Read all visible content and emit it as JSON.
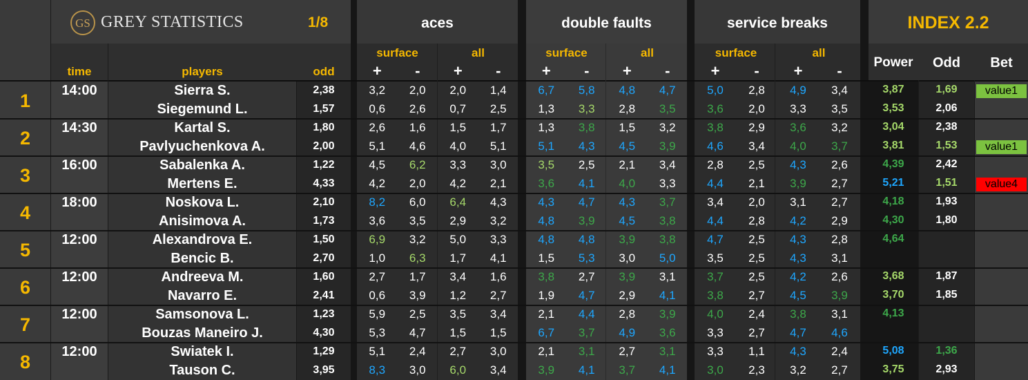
{
  "brand": {
    "logo_monogram": "GS",
    "name": "GREY STATISTICS",
    "page": "1/8"
  },
  "groups": {
    "aces": "aces",
    "double_faults": "double faults",
    "service_breaks": "service breaks",
    "index": "INDEX 2.2"
  },
  "sub": {
    "surface": "surface",
    "all": "all"
  },
  "signs": {
    "plus": "+",
    "minus": "-"
  },
  "columns": {
    "time": "time",
    "players": "players",
    "odd": "odd",
    "power": "Power",
    "odd2": "Odd",
    "bet": "Bet"
  },
  "colors": {
    "header_gold": "#f5b800",
    "blue": "#1ea7ff",
    "green": "#7ac143",
    "dark_green": "#3da84a",
    "light_green": "#a6d96a",
    "value1_bg": "#7cc240",
    "value4_bg": "#ff0000"
  },
  "matches": [
    {
      "num": "1",
      "time": "14:00",
      "players": [
        {
          "name": "Sierra S.",
          "odd": "2,38",
          "stats": [
            [
              "3,2",
              "w"
            ],
            [
              "2,0",
              "w"
            ],
            [
              "2,0",
              "w"
            ],
            [
              "1,4",
              "w"
            ],
            [
              "6,7",
              "b"
            ],
            [
              "5,8",
              "b"
            ],
            [
              "4,8",
              "b"
            ],
            [
              "4,7",
              "b"
            ],
            [
              "5,0",
              "b"
            ],
            [
              "2,8",
              "w"
            ],
            [
              "4,9",
              "b"
            ],
            [
              "3,4",
              "w"
            ]
          ],
          "power": [
            "3,87",
            "lg"
          ],
          "odd2": [
            "1,69",
            "lg"
          ],
          "bet": "value1",
          "bet_type": "v1"
        },
        {
          "name": "Siegemund L.",
          "odd": "1,57",
          "stats": [
            [
              "0,6",
              "w"
            ],
            [
              "2,6",
              "w"
            ],
            [
              "0,7",
              "w"
            ],
            [
              "2,5",
              "w"
            ],
            [
              "1,3",
              "w"
            ],
            [
              "3,3",
              "lg"
            ],
            [
              "2,8",
              "w"
            ],
            [
              "3,5",
              "dg"
            ],
            [
              "3,6",
              "dg"
            ],
            [
              "2,0",
              "w"
            ],
            [
              "3,3",
              "w"
            ],
            [
              "3,5",
              "w"
            ]
          ],
          "power": [
            "3,53",
            "lg"
          ],
          "odd2": [
            "2,06",
            "w"
          ],
          "bet": "",
          "bet_type": ""
        }
      ]
    },
    {
      "num": "2",
      "time": "14:30",
      "players": [
        {
          "name": "Kartal S.",
          "odd": "1,80",
          "stats": [
            [
              "2,6",
              "w"
            ],
            [
              "1,6",
              "w"
            ],
            [
              "1,5",
              "w"
            ],
            [
              "1,7",
              "w"
            ],
            [
              "1,3",
              "w"
            ],
            [
              "3,8",
              "dg"
            ],
            [
              "1,5",
              "w"
            ],
            [
              "3,2",
              "w"
            ],
            [
              "3,8",
              "dg"
            ],
            [
              "2,9",
              "w"
            ],
            [
              "3,6",
              "dg"
            ],
            [
              "3,2",
              "w"
            ]
          ],
          "power": [
            "3,04",
            "lg"
          ],
          "odd2": [
            "2,38",
            "w"
          ],
          "bet": "",
          "bet_type": ""
        },
        {
          "name": "Pavlyuchenkova A.",
          "odd": "2,00",
          "stats": [
            [
              "5,1",
              "w"
            ],
            [
              "4,6",
              "w"
            ],
            [
              "4,0",
              "w"
            ],
            [
              "5,1",
              "w"
            ],
            [
              "5,1",
              "b"
            ],
            [
              "4,3",
              "b"
            ],
            [
              "4,5",
              "b"
            ],
            [
              "3,9",
              "dg"
            ],
            [
              "4,6",
              "b"
            ],
            [
              "3,4",
              "w"
            ],
            [
              "4,0",
              "dg"
            ],
            [
              "3,7",
              "dg"
            ]
          ],
          "power": [
            "3,81",
            "lg"
          ],
          "odd2": [
            "1,53",
            "lg"
          ],
          "bet": "value1",
          "bet_type": "v1"
        }
      ]
    },
    {
      "num": "3",
      "time": "16:00",
      "players": [
        {
          "name": "Sabalenka A.",
          "odd": "1,22",
          "stats": [
            [
              "4,5",
              "w"
            ],
            [
              "6,2",
              "lg"
            ],
            [
              "3,3",
              "w"
            ],
            [
              "3,0",
              "w"
            ],
            [
              "3,5",
              "lg"
            ],
            [
              "2,5",
              "w"
            ],
            [
              "2,1",
              "w"
            ],
            [
              "3,4",
              "w"
            ],
            [
              "2,8",
              "w"
            ],
            [
              "2,5",
              "w"
            ],
            [
              "4,3",
              "b"
            ],
            [
              "2,6",
              "w"
            ]
          ],
          "power": [
            "4,39",
            "dg"
          ],
          "odd2": [
            "2,42",
            "w"
          ],
          "bet": "",
          "bet_type": ""
        },
        {
          "name": "Mertens E.",
          "odd": "4,33",
          "stats": [
            [
              "4,2",
              "w"
            ],
            [
              "2,0",
              "w"
            ],
            [
              "4,2",
              "w"
            ],
            [
              "2,1",
              "w"
            ],
            [
              "3,6",
              "dg"
            ],
            [
              "4,1",
              "b"
            ],
            [
              "4,0",
              "dg"
            ],
            [
              "3,3",
              "w"
            ],
            [
              "4,4",
              "b"
            ],
            [
              "2,1",
              "w"
            ],
            [
              "3,9",
              "dg"
            ],
            [
              "2,7",
              "w"
            ]
          ],
          "power": [
            "5,21",
            "b"
          ],
          "odd2": [
            "1,51",
            "lg"
          ],
          "bet": "value4",
          "bet_type": "v4"
        }
      ]
    },
    {
      "num": "4",
      "time": "18:00",
      "players": [
        {
          "name": "Noskova L.",
          "odd": "2,10",
          "stats": [
            [
              "8,2",
              "b"
            ],
            [
              "6,0",
              "w"
            ],
            [
              "6,4",
              "lg"
            ],
            [
              "4,3",
              "w"
            ],
            [
              "4,3",
              "b"
            ],
            [
              "4,7",
              "b"
            ],
            [
              "4,3",
              "b"
            ],
            [
              "3,7",
              "dg"
            ],
            [
              "3,4",
              "w"
            ],
            [
              "2,0",
              "w"
            ],
            [
              "3,1",
              "w"
            ],
            [
              "2,7",
              "w"
            ]
          ],
          "power": [
            "4,18",
            "dg"
          ],
          "odd2": [
            "1,93",
            "w"
          ],
          "bet": "",
          "bet_type": ""
        },
        {
          "name": "Anisimova A.",
          "odd": "1,73",
          "stats": [
            [
              "3,6",
              "w"
            ],
            [
              "3,5",
              "w"
            ],
            [
              "2,9",
              "w"
            ],
            [
              "3,2",
              "w"
            ],
            [
              "4,8",
              "b"
            ],
            [
              "3,9",
              "dg"
            ],
            [
              "4,5",
              "b"
            ],
            [
              "3,8",
              "dg"
            ],
            [
              "4,4",
              "b"
            ],
            [
              "2,8",
              "w"
            ],
            [
              "4,2",
              "b"
            ],
            [
              "2,9",
              "w"
            ]
          ],
          "power": [
            "4,30",
            "dg"
          ],
          "odd2": [
            "1,80",
            "w"
          ],
          "bet": "",
          "bet_type": ""
        }
      ]
    },
    {
      "num": "5",
      "time": "12:00",
      "players": [
        {
          "name": "Alexandrova E.",
          "odd": "1,50",
          "stats": [
            [
              "6,9",
              "lg"
            ],
            [
              "3,2",
              "w"
            ],
            [
              "5,0",
              "w"
            ],
            [
              "3,3",
              "w"
            ],
            [
              "4,8",
              "b"
            ],
            [
              "4,8",
              "b"
            ],
            [
              "3,9",
              "dg"
            ],
            [
              "3,8",
              "dg"
            ],
            [
              "4,7",
              "b"
            ],
            [
              "2,5",
              "w"
            ],
            [
              "4,3",
              "b"
            ],
            [
              "2,8",
              "w"
            ]
          ],
          "power": [
            "4,64",
            "dg"
          ],
          "odd2": [
            "",
            ""
          ],
          "bet": "",
          "bet_type": ""
        },
        {
          "name": "Bencic B.",
          "odd": "2,70",
          "stats": [
            [
              "1,0",
              "w"
            ],
            [
              "6,3",
              "lg"
            ],
            [
              "1,7",
              "w"
            ],
            [
              "4,1",
              "w"
            ],
            [
              "1,5",
              "w"
            ],
            [
              "5,3",
              "b"
            ],
            [
              "3,0",
              "w"
            ],
            [
              "5,0",
              "b"
            ],
            [
              "3,5",
              "w"
            ],
            [
              "2,5",
              "w"
            ],
            [
              "4,3",
              "b"
            ],
            [
              "3,1",
              "w"
            ]
          ],
          "power": [
            "",
            ""
          ],
          "odd2": [
            "",
            ""
          ],
          "bet": "",
          "bet_type": ""
        }
      ]
    },
    {
      "num": "6",
      "time": "12:00",
      "players": [
        {
          "name": "Andreeva M.",
          "odd": "1,60",
          "stats": [
            [
              "2,7",
              "w"
            ],
            [
              "1,7",
              "w"
            ],
            [
              "3,4",
              "w"
            ],
            [
              "1,6",
              "w"
            ],
            [
              "3,8",
              "dg"
            ],
            [
              "2,7",
              "w"
            ],
            [
              "3,9",
              "dg"
            ],
            [
              "3,1",
              "w"
            ],
            [
              "3,7",
              "dg"
            ],
            [
              "2,5",
              "w"
            ],
            [
              "4,2",
              "b"
            ],
            [
              "2,6",
              "w"
            ]
          ],
          "power": [
            "3,68",
            "lg"
          ],
          "odd2": [
            "1,87",
            "w"
          ],
          "bet": "",
          "bet_type": ""
        },
        {
          "name": "Navarro E.",
          "odd": "2,41",
          "stats": [
            [
              "0,6",
              "w"
            ],
            [
              "3,9",
              "w"
            ],
            [
              "1,2",
              "w"
            ],
            [
              "2,7",
              "w"
            ],
            [
              "1,9",
              "w"
            ],
            [
              "4,7",
              "b"
            ],
            [
              "2,9",
              "w"
            ],
            [
              "4,1",
              "b"
            ],
            [
              "3,8",
              "dg"
            ],
            [
              "2,7",
              "w"
            ],
            [
              "4,5",
              "b"
            ],
            [
              "3,9",
              "dg"
            ]
          ],
          "power": [
            "3,70",
            "lg"
          ],
          "odd2": [
            "1,85",
            "w"
          ],
          "bet": "",
          "bet_type": ""
        }
      ]
    },
    {
      "num": "7",
      "time": "12:00",
      "players": [
        {
          "name": "Samsonova L.",
          "odd": "1,23",
          "stats": [
            [
              "5,9",
              "w"
            ],
            [
              "2,5",
              "w"
            ],
            [
              "3,5",
              "w"
            ],
            [
              "3,4",
              "w"
            ],
            [
              "2,1",
              "w"
            ],
            [
              "4,4",
              "b"
            ],
            [
              "2,8",
              "w"
            ],
            [
              "3,9",
              "dg"
            ],
            [
              "4,0",
              "dg"
            ],
            [
              "2,4",
              "w"
            ],
            [
              "3,8",
              "dg"
            ],
            [
              "3,1",
              "w"
            ]
          ],
          "power": [
            "4,13",
            "dg"
          ],
          "odd2": [
            "",
            ""
          ],
          "bet": "",
          "bet_type": ""
        },
        {
          "name": "Bouzas Maneiro J.",
          "odd": "4,30",
          "stats": [
            [
              "5,3",
              "w"
            ],
            [
              "4,7",
              "w"
            ],
            [
              "1,5",
              "w"
            ],
            [
              "1,5",
              "w"
            ],
            [
              "6,7",
              "b"
            ],
            [
              "3,7",
              "dg"
            ],
            [
              "4,9",
              "b"
            ],
            [
              "3,6",
              "dg"
            ],
            [
              "3,3",
              "w"
            ],
            [
              "2,7",
              "w"
            ],
            [
              "4,7",
              "b"
            ],
            [
              "4,6",
              "b"
            ]
          ],
          "power": [
            "",
            ""
          ],
          "odd2": [
            "",
            ""
          ],
          "bet": "",
          "bet_type": ""
        }
      ]
    },
    {
      "num": "8",
      "time": "12:00",
      "players": [
        {
          "name": "Swiatek I.",
          "odd": "1,29",
          "stats": [
            [
              "5,1",
              "w"
            ],
            [
              "2,4",
              "w"
            ],
            [
              "2,7",
              "w"
            ],
            [
              "3,0",
              "w"
            ],
            [
              "2,1",
              "w"
            ],
            [
              "3,1",
              "dg"
            ],
            [
              "2,7",
              "w"
            ],
            [
              "3,1",
              "dg"
            ],
            [
              "3,3",
              "w"
            ],
            [
              "1,1",
              "w"
            ],
            [
              "4,3",
              "b"
            ],
            [
              "2,4",
              "w"
            ]
          ],
          "power": [
            "5,08",
            "b"
          ],
          "odd2": [
            "1,36",
            "dg"
          ],
          "bet": "",
          "bet_type": ""
        },
        {
          "name": "Tauson C.",
          "odd": "3,95",
          "stats": [
            [
              "8,3",
              "b"
            ],
            [
              "3,0",
              "w"
            ],
            [
              "6,0",
              "lg"
            ],
            [
              "3,4",
              "w"
            ],
            [
              "3,9",
              "dg"
            ],
            [
              "4,1",
              "b"
            ],
            [
              "3,7",
              "dg"
            ],
            [
              "4,1",
              "b"
            ],
            [
              "3,0",
              "dg"
            ],
            [
              "2,3",
              "w"
            ],
            [
              "3,2",
              "w"
            ],
            [
              "2,7",
              "w"
            ]
          ],
          "power": [
            "3,75",
            "lg"
          ],
          "odd2": [
            "2,93",
            "w"
          ],
          "bet": "",
          "bet_type": ""
        }
      ]
    }
  ]
}
